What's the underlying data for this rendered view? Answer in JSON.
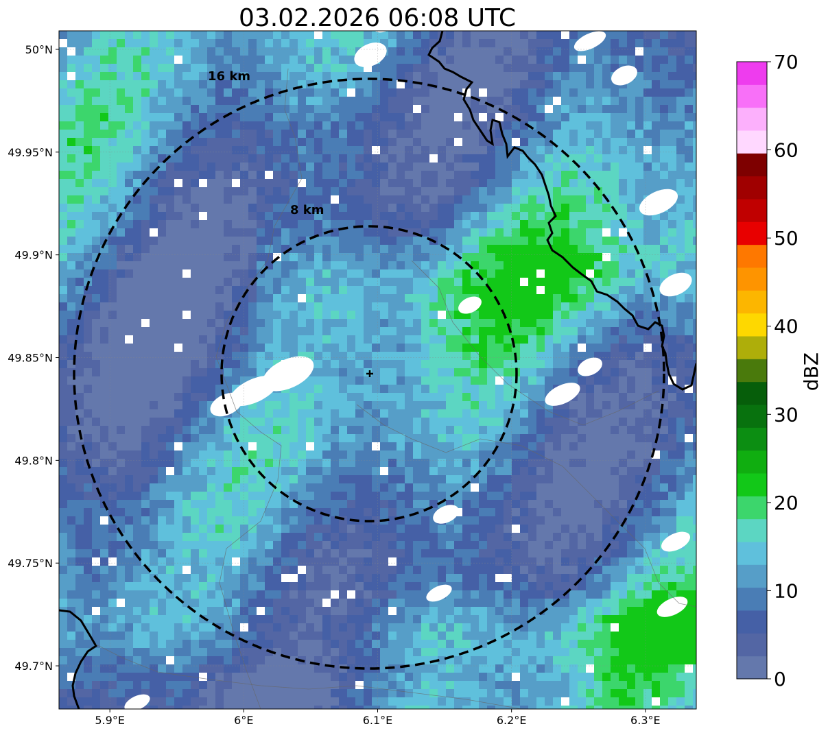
{
  "title": "03.02.2026 06:08 UTC",
  "map": {
    "lon_range": [
      5.862,
      6.338
    ],
    "lat_range": [
      49.679,
      50.009
    ],
    "radar_site": {
      "lon": 6.095,
      "lat": 49.843
    },
    "rings": [
      {
        "label": "8 km",
        "radius_km": 8
      },
      {
        "label": "16 km",
        "radius_km": 16
      }
    ],
    "x_ticks": [
      {
        "value": 5.9,
        "label": "5.9°E"
      },
      {
        "value": 6.0,
        "label": "6°E"
      },
      {
        "value": 6.1,
        "label": "6.1°E"
      },
      {
        "value": 6.2,
        "label": "6.2°E"
      },
      {
        "value": 6.3,
        "label": "6.3°E"
      }
    ],
    "y_ticks": [
      {
        "value": 50.0,
        "label": "50°N"
      },
      {
        "value": 49.95,
        "label": "49.95°N"
      },
      {
        "value": 49.9,
        "label": "49.9°N"
      },
      {
        "value": 49.85,
        "label": "49.85°N"
      },
      {
        "value": 49.8,
        "label": "49.8°N"
      },
      {
        "value": 49.75,
        "label": "49.75°N"
      },
      {
        "value": 49.7,
        "label": "49.7°N"
      }
    ]
  },
  "colorbar": {
    "label": "dBZ",
    "min": 0,
    "max": 70,
    "tick_values": [
      0,
      10,
      20,
      30,
      40,
      50,
      60,
      70
    ],
    "tick_labels": [
      "0",
      "10",
      "20",
      "30",
      "40",
      "50",
      "60",
      "70"
    ],
    "colors": [
      "#6478ac",
      "#5366a4",
      "#4560a6",
      "#4a7db5",
      "#569ec8",
      "#5fc0dc",
      "#5cd6c2",
      "#3cd66c",
      "#12c818",
      "#10ae10",
      "#0c8e12",
      "#08720e",
      "#065e0a",
      "#4a7a0c",
      "#aeae0a",
      "#fed800",
      "#fcb600",
      "#fe9400",
      "#fe7800",
      "#e80000",
      "#c00000",
      "#a00000",
      "#7e0000",
      "#ffd8ff",
      "#fcb0fc",
      "#f870f8",
      "#ee3cee"
    ]
  }
}
